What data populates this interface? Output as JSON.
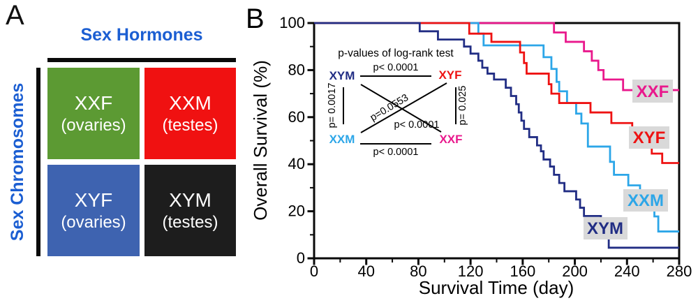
{
  "panel_a": {
    "label": "A",
    "col_header": "Sex Hormones",
    "row_header": "Sex Chromosomes",
    "header_color": "#1b5ed2",
    "quadrants": [
      {
        "line1": "XXF",
        "line2": "(ovaries)",
        "color": "#5c9a33"
      },
      {
        "line1": "XXM",
        "line2": "(testes)",
        "color": "#f01111"
      },
      {
        "line1": "XYF",
        "line2": "(ovaries)",
        "color": "#3e63b0"
      },
      {
        "line1": "XYM",
        "line2": "(testes)",
        "color": "#1d1d1d"
      }
    ]
  },
  "panel_b": {
    "label": "B",
    "label_bg": "#d9d9d9",
    "inset": {
      "title": "p-values of log-rank test",
      "edges": {
        "xym_xyf": "p< 0.0001",
        "xxm_xxf": "p< 0.0001",
        "xym_xxm": "p= 0.0017",
        "xyf_xxf": "p= 0.025",
        "xxm_xyf": "p=0.0553",
        "xym_xxf": "p< 0.0001"
      }
    }
  },
  "chart_data": {
    "type": "line",
    "subtype": "kaplan-meier-step",
    "title": "",
    "xlabel": "Survival Time (day)",
    "ylabel": "Overall Survival (%)",
    "xlim": [
      0,
      280
    ],
    "ylim": [
      0,
      100
    ],
    "grid": false,
    "legend": "inline-labels-on-gray-boxes",
    "x_major_ticks": [
      0,
      40,
      80,
      120,
      160,
      200,
      240,
      280
    ],
    "x_minor_ticks": [
      20,
      60,
      100,
      140,
      180,
      220,
      260
    ],
    "y_major_ticks": [
      0,
      20,
      40,
      60,
      80,
      100
    ],
    "y_minor_ticks": [
      10,
      30,
      50,
      70,
      90
    ],
    "series_note": "drops = [day, survival% after drop]; curve starts at 100% at day 0 and is flat between drops until day 280",
    "series": [
      {
        "name": "XXF",
        "color": "#e9188c",
        "start": [
          0,
          100
        ],
        "end_day": 280,
        "drops": [
          [
            184,
            96
          ],
          [
            193,
            92
          ],
          [
            207,
            88
          ],
          [
            213,
            84
          ],
          [
            218,
            80
          ],
          [
            222,
            76
          ],
          [
            237,
            71.5
          ]
        ]
      },
      {
        "name": "XXM",
        "color": "#2ca6e8",
        "start": [
          0,
          100
        ],
        "end_day": 280,
        "drops": [
          [
            126,
            95.5
          ],
          [
            130,
            90.5
          ],
          [
            176,
            85.5
          ],
          [
            182,
            80.5
          ],
          [
            186,
            75
          ],
          [
            188,
            71
          ],
          [
            194,
            66
          ],
          [
            201,
            61.5
          ],
          [
            205,
            57.3
          ],
          [
            210,
            47.5
          ],
          [
            227,
            41
          ],
          [
            230,
            35.5
          ],
          [
            241,
            31
          ],
          [
            250,
            26
          ],
          [
            256,
            22
          ],
          [
            261,
            17.8
          ],
          [
            264,
            11.4
          ]
        ]
      },
      {
        "name": "XYF",
        "color": "#ee1212",
        "start": [
          0,
          100
        ],
        "end_day": 280,
        "drops": [
          [
            119,
            95.5
          ],
          [
            136,
            92
          ],
          [
            158,
            87.5
          ],
          [
            161,
            83
          ],
          [
            163,
            78.5
          ],
          [
            180,
            74
          ],
          [
            182,
            70
          ],
          [
            188,
            66
          ],
          [
            212,
            62
          ],
          [
            228,
            57.5
          ],
          [
            244,
            53.5
          ],
          [
            252,
            49
          ],
          [
            259,
            44.5
          ],
          [
            267,
            40.5
          ]
        ]
      },
      {
        "name": "XYM",
        "color": "#212d84",
        "start": [
          0,
          100
        ],
        "end_day": 280,
        "drops": [
          [
            81,
            96.5
          ],
          [
            95,
            93
          ],
          [
            115,
            90
          ],
          [
            120,
            87
          ],
          [
            126,
            84
          ],
          [
            129,
            81
          ],
          [
            133,
            78.5
          ],
          [
            138,
            76
          ],
          [
            147,
            72.5
          ],
          [
            151,
            69
          ],
          [
            155,
            65.5
          ],
          [
            157,
            62
          ],
          [
            159,
            58.5
          ],
          [
            161,
            55
          ],
          [
            165,
            51.5
          ],
          [
            171,
            48
          ],
          [
            174,
            45.5
          ],
          [
            176,
            42
          ],
          [
            181,
            39
          ],
          [
            184,
            35.5
          ],
          [
            188,
            32
          ],
          [
            192,
            28.5
          ],
          [
            201,
            25
          ],
          [
            204,
            21.5
          ],
          [
            207,
            18
          ],
          [
            220,
            13.5
          ],
          [
            223,
            9
          ],
          [
            226,
            4.5
          ]
        ]
      }
    ]
  }
}
